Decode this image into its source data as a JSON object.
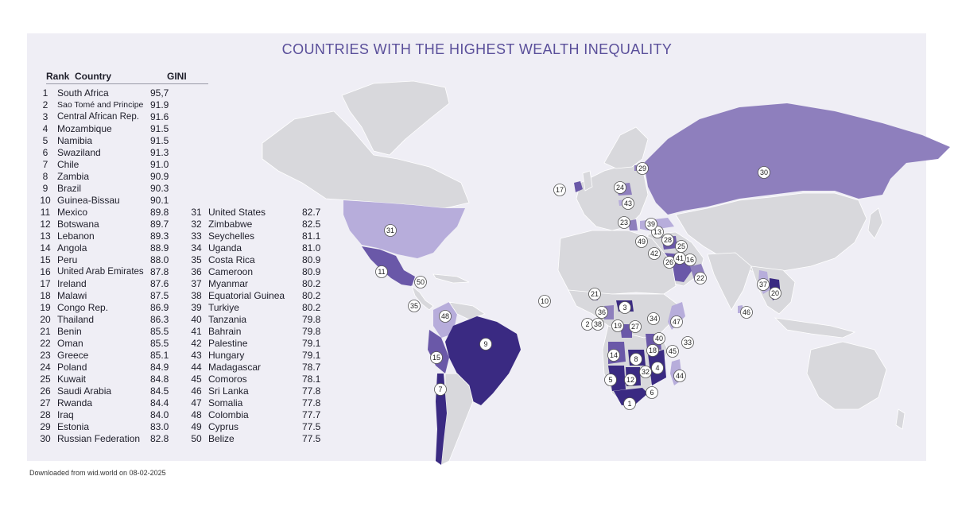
{
  "title": "COUNTRIES WITH THE HIGHEST WEALTH INEQUALITY",
  "table_header": {
    "rank": "Rank",
    "country": "Country",
    "gini": "GINI"
  },
  "source_note": "Downloaded from wid.world on 08-02-2025",
  "colors": {
    "panel": "#efeef5",
    "land": "#d8d8dc",
    "tier1": "#3a2a82",
    "tier2": "#6a58a8",
    "tier3": "#8e7fbd",
    "tier4": "#b7addb",
    "title": "#5a4f9a"
  },
  "rankings": [
    {
      "rank": "1",
      "country": "South Africa",
      "gini": "95,7"
    },
    {
      "rank": "2",
      "country": "Sao Tomé and Principe",
      "gini": "91.9"
    },
    {
      "rank": "3",
      "country": "Central African Rep.",
      "gini": "91.6"
    },
    {
      "rank": "4",
      "country": "Mozambique",
      "gini": "91.5"
    },
    {
      "rank": "5",
      "country": "Namibia",
      "gini": "91.5"
    },
    {
      "rank": "6",
      "country": "Swaziland",
      "gini": "91.3"
    },
    {
      "rank": "7",
      "country": "Chile",
      "gini": "91.0"
    },
    {
      "rank": "8",
      "country": "Zambia",
      "gini": "90.9"
    },
    {
      "rank": "9",
      "country": "Brazil",
      "gini": "90.3"
    },
    {
      "rank": "10",
      "country": "Guinea-Bissau",
      "gini": "90.1"
    },
    {
      "rank": "11",
      "country": "Mexico",
      "gini": "89.8"
    },
    {
      "rank": "12",
      "country": "Botswana",
      "gini": "89.7"
    },
    {
      "rank": "13",
      "country": "Lebanon",
      "gini": "89.3"
    },
    {
      "rank": "14",
      "country": "Angola",
      "gini": "88.9"
    },
    {
      "rank": "15",
      "country": "Peru",
      "gini": "88.0"
    },
    {
      "rank": "16",
      "country": "United Arab Emirates",
      "gini": "87.8"
    },
    {
      "rank": "17",
      "country": "Ireland",
      "gini": "87.6"
    },
    {
      "rank": "18",
      "country": "Malawi",
      "gini": "87.5"
    },
    {
      "rank": "19",
      "country": "Congo Rep.",
      "gini": "86.9"
    },
    {
      "rank": "20",
      "country": "Thailand",
      "gini": "86.3"
    },
    {
      "rank": "21",
      "country": "Benin",
      "gini": "85.5"
    },
    {
      "rank": "22",
      "country": "Oman",
      "gini": "85.5"
    },
    {
      "rank": "23",
      "country": "Greece",
      "gini": "85.1"
    },
    {
      "rank": "24",
      "country": "Poland",
      "gini": "84.9"
    },
    {
      "rank": "25",
      "country": "Kuwait",
      "gini": "84.8"
    },
    {
      "rank": "26",
      "country": "Saudi Arabia",
      "gini": "84.5"
    },
    {
      "rank": "27",
      "country": "Rwanda",
      "gini": "84.4"
    },
    {
      "rank": "28",
      "country": "Iraq",
      "gini": "84.0"
    },
    {
      "rank": "29",
      "country": "Estonia",
      "gini": "83.0"
    },
    {
      "rank": "30",
      "country": "Russian Federation",
      "gini": "82.8"
    },
    {
      "rank": "31",
      "country": "United States",
      "gini": "82.7"
    },
    {
      "rank": "32",
      "country": "Zimbabwe",
      "gini": "82.5"
    },
    {
      "rank": "33",
      "country": "Seychelles",
      "gini": "81.1"
    },
    {
      "rank": "34",
      "country": "Uganda",
      "gini": "81.0"
    },
    {
      "rank": "35",
      "country": "Costa Rica",
      "gini": "80.9"
    },
    {
      "rank": "36",
      "country": "Cameroon",
      "gini": "80.9"
    },
    {
      "rank": "37",
      "country": "Myanmar",
      "gini": "80.2"
    },
    {
      "rank": "38",
      "country": "Equatorial Guinea",
      "gini": "80.2"
    },
    {
      "rank": "39",
      "country": "Turkiye",
      "gini": "80.2"
    },
    {
      "rank": "40",
      "country": "Tanzania",
      "gini": "79.8"
    },
    {
      "rank": "41",
      "country": "Bahrain",
      "gini": "79.8"
    },
    {
      "rank": "42",
      "country": "Palestine",
      "gini": "79.1"
    },
    {
      "rank": "43",
      "country": "Hungary",
      "gini": "79.1"
    },
    {
      "rank": "44",
      "country": "Madagascar",
      "gini": "78.7"
    },
    {
      "rank": "45",
      "country": "Comoros",
      "gini": "78.1"
    },
    {
      "rank": "46",
      "country": "Sri Lanka",
      "gini": "77.8"
    },
    {
      "rank": "47",
      "country": "Somalia",
      "gini": "77.8"
    },
    {
      "rank": "48",
      "country": "Colombia",
      "gini": "77.7"
    },
    {
      "rank": "49",
      "country": "Cyprus",
      "gini": "77.5"
    },
    {
      "rank": "50",
      "country": "Belize",
      "gini": "77.5"
    }
  ],
  "map_markers": [
    "1",
    "2",
    "3",
    "4",
    "5",
    "6",
    "7",
    "8",
    "9",
    "10",
    "11",
    "12",
    "13",
    "14",
    "15",
    "16",
    "17",
    "18",
    "19",
    "20",
    "21",
    "22",
    "23",
    "24",
    "25",
    "26",
    "27",
    "28",
    "29",
    "30",
    "31",
    "32",
    "33",
    "34",
    "35",
    "36",
    "37",
    "38",
    "39",
    "40",
    "41",
    "42",
    "43",
    "44",
    "45",
    "46",
    "47",
    "48",
    "49",
    "50"
  ]
}
